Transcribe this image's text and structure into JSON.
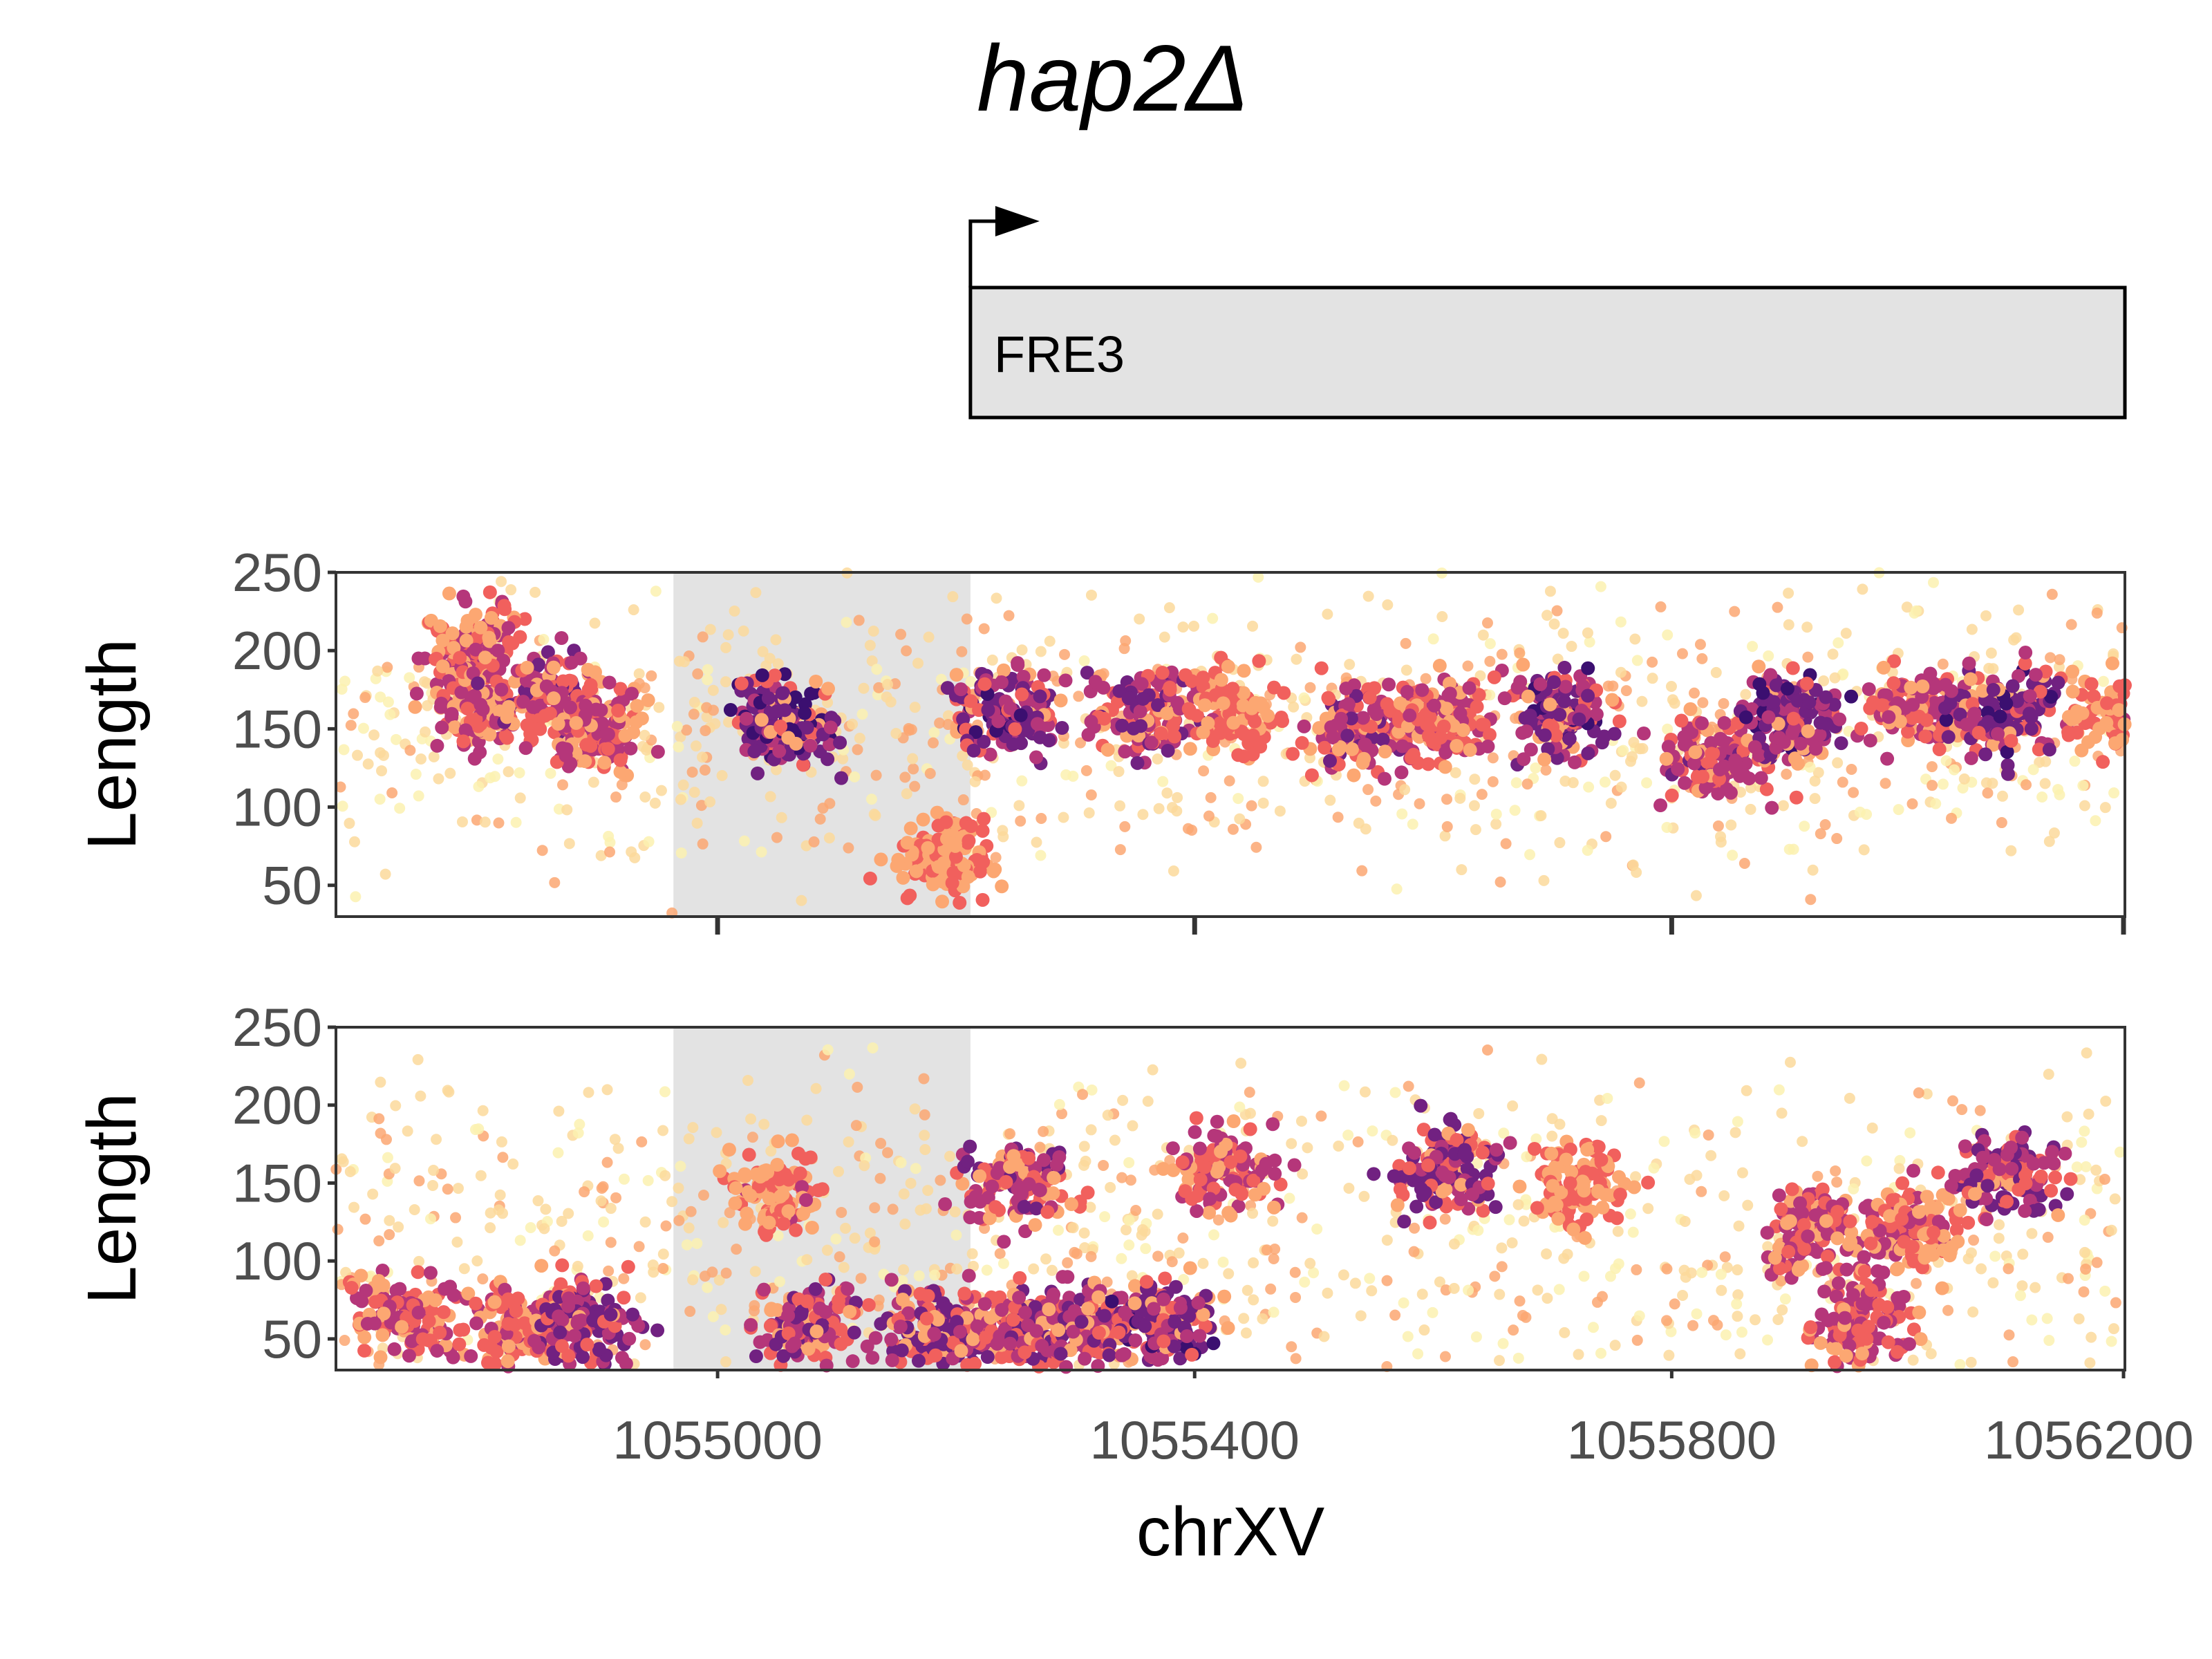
{
  "chart_data": {
    "type": "scatter",
    "title": "hap2Δ",
    "gene_track": {
      "gene": "FRE3",
      "start": 1055212,
      "end": 1056200,
      "strand": "+",
      "fill": "#e3e3e3"
    },
    "shaded_region": {
      "start": 963,
      "end": 1055212,
      "x_start": 1054963,
      "fill": "#e3e3e3"
    },
    "xlabel": "chrXV",
    "ylabel": "Length",
    "xlim": [
      1054680,
      1056180
    ],
    "ylim": [
      30,
      250
    ],
    "x_ticks": [
      1055000,
      1055400,
      1055800,
      1056200
    ],
    "x_tick_labels": [
      "1055000",
      "1055400",
      "1055800",
      "1056200"
    ],
    "y_ticks": [
      50,
      100,
      150,
      200,
      250
    ],
    "y_tick_labels": [
      "50",
      "100",
      "150",
      "200",
      "250"
    ],
    "color_scale": "magma (density: low = pale yellow, high = dark purple)",
    "colors": [
      "#fcf1b0",
      "#fcd99b",
      "#fca772",
      "#f1605d",
      "#b5367a",
      "#712181",
      "#3b0f70"
    ],
    "panels": [
      {
        "name": "top",
        "clusters": [
          {
            "x": 1054800,
            "y": 205,
            "density": 0.65
          },
          {
            "x": 1054800,
            "y": 165,
            "density": 0.75
          },
          {
            "x": 1054860,
            "y": 170,
            "density": 0.8
          },
          {
            "x": 1054900,
            "y": 150,
            "density": 0.7
          },
          {
            "x": 1055055,
            "y": 155,
            "density": 1.0
          },
          {
            "x": 1055195,
            "y": 65,
            "density": 0.55
          },
          {
            "x": 1055245,
            "y": 160,
            "density": 0.95
          },
          {
            "x": 1055360,
            "y": 160,
            "density": 0.85
          },
          {
            "x": 1055430,
            "y": 160,
            "density": 0.6
          },
          {
            "x": 1055540,
            "y": 150,
            "density": 0.8
          },
          {
            "x": 1055610,
            "y": 160,
            "density": 0.7
          },
          {
            "x": 1055710,
            "y": 160,
            "density": 0.95
          },
          {
            "x": 1055840,
            "y": 130,
            "density": 0.8
          },
          {
            "x": 1055900,
            "y": 160,
            "density": 0.95
          },
          {
            "x": 1056010,
            "y": 165,
            "density": 0.75
          },
          {
            "x": 1056080,
            "y": 160,
            "density": 0.95
          },
          {
            "x": 1056180,
            "y": 160,
            "density": 0.6
          }
        ]
      },
      {
        "name": "bottom",
        "clusters": [
          {
            "x": 1054740,
            "y": 65,
            "density": 0.7
          },
          {
            "x": 1054830,
            "y": 55,
            "density": 0.65
          },
          {
            "x": 1054890,
            "y": 60,
            "density": 0.9
          },
          {
            "x": 1055050,
            "y": 145,
            "density": 0.6
          },
          {
            "x": 1055080,
            "y": 60,
            "density": 0.8
          },
          {
            "x": 1055185,
            "y": 55,
            "density": 0.9
          },
          {
            "x": 1055250,
            "y": 150,
            "density": 0.8
          },
          {
            "x": 1055255,
            "y": 60,
            "density": 0.85
          },
          {
            "x": 1055310,
            "y": 55,
            "density": 0.8
          },
          {
            "x": 1055375,
            "y": 60,
            "density": 0.95
          },
          {
            "x": 1055430,
            "y": 160,
            "density": 0.75
          },
          {
            "x": 1055610,
            "y": 160,
            "density": 0.9
          },
          {
            "x": 1055720,
            "y": 150,
            "density": 0.55
          },
          {
            "x": 1055920,
            "y": 120,
            "density": 0.75
          },
          {
            "x": 1055960,
            "y": 60,
            "density": 0.75
          },
          {
            "x": 1056000,
            "y": 120,
            "density": 0.65
          },
          {
            "x": 1056080,
            "y": 155,
            "density": 0.9
          }
        ]
      }
    ]
  }
}
